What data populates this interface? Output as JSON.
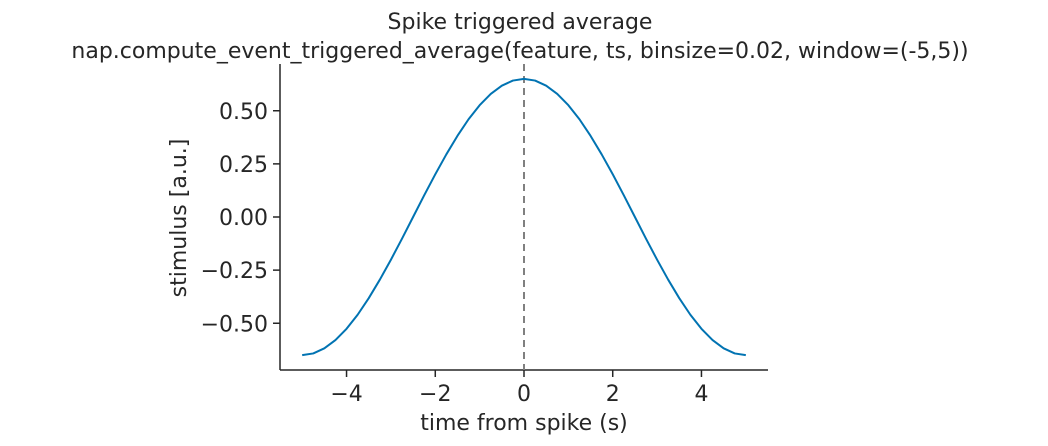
{
  "chart_data": {
    "type": "line",
    "title": "Spike triggered average",
    "subtitle": "nap.compute_event_triggered_average(feature, ts, binsize=0.02, window=(-5,5))",
    "xlabel": "time from spike (s)",
    "ylabel": "stimulus [a.u.]",
    "xlim": [
      -5.5,
      5.5
    ],
    "ylim": [
      -0.72,
      0.72
    ],
    "xticks": [
      -4,
      -2,
      0,
      2,
      4
    ],
    "xtick_labels": [
      "−4",
      "−2",
      "0",
      "2",
      "4"
    ],
    "yticks": [
      -0.5,
      -0.25,
      0,
      0.25,
      0.5
    ],
    "ytick_labels": [
      "−0.50",
      "−0.25",
      "0.00",
      "0.25",
      "0.50"
    ],
    "grid": false,
    "colors": {
      "line": "#0173b2",
      "vline": "#808080",
      "axis": "#262626"
    },
    "series": [
      {
        "x": [
          -5,
          -4.75,
          -4.5,
          -4.25,
          -4,
          -3.75,
          -3.5,
          -3.25,
          -3,
          -2.75,
          -2.5,
          -2.25,
          -2,
          -1.75,
          -1.5,
          -1.25,
          -1,
          -0.75,
          -0.5,
          -0.25,
          0,
          0.25,
          0.5,
          0.75,
          1,
          1.25,
          1.5,
          1.75,
          2,
          2.25,
          2.5,
          2.75,
          3,
          3.25,
          3.5,
          3.75,
          4,
          4.25,
          4.5,
          4.75,
          5
        ],
        "y": [
          -0.65,
          -0.642,
          -0.618,
          -0.579,
          -0.526,
          -0.46,
          -0.382,
          -0.295,
          -0.201,
          -0.102,
          0,
          0.102,
          0.201,
          0.295,
          0.382,
          0.46,
          0.526,
          0.579,
          0.618,
          0.642,
          0.65,
          0.642,
          0.618,
          0.579,
          0.526,
          0.46,
          0.382,
          0.295,
          0.201,
          0.102,
          0,
          -0.102,
          -0.201,
          -0.295,
          -0.382,
          -0.46,
          -0.526,
          -0.579,
          -0.618,
          -0.642,
          -0.65
        ]
      }
    ],
    "vline": {
      "x": 0,
      "style": "dashed"
    }
  }
}
